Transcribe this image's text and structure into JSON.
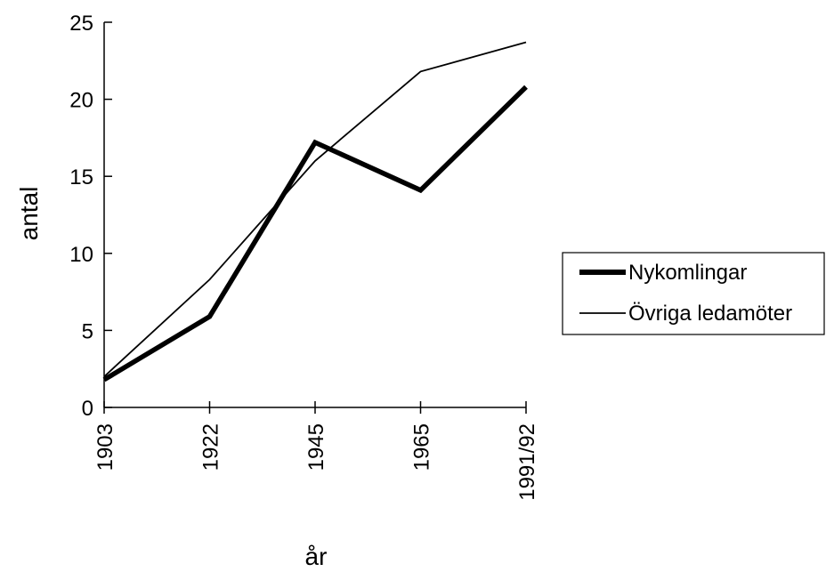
{
  "chart_data": {
    "type": "line",
    "categories": [
      "1903",
      "1922",
      "1945",
      "1965",
      "1991/92"
    ],
    "series": [
      {
        "name": "Nykomlingar",
        "values": [
          1.8,
          5.9,
          17.2,
          14.1,
          20.8
        ],
        "color": "#000000",
        "weight": "bold"
      },
      {
        "name": "Övriga ledamöter",
        "values": [
          2.0,
          8.3,
          16.0,
          21.8,
          23.7
        ],
        "color": "#000000",
        "weight": "thin"
      }
    ],
    "xlabel": "år",
    "ylabel": "antal",
    "ylim": [
      0,
      25
    ],
    "yticks": [
      0,
      5,
      10,
      15,
      20,
      25
    ],
    "grid": false,
    "legend": "right"
  }
}
